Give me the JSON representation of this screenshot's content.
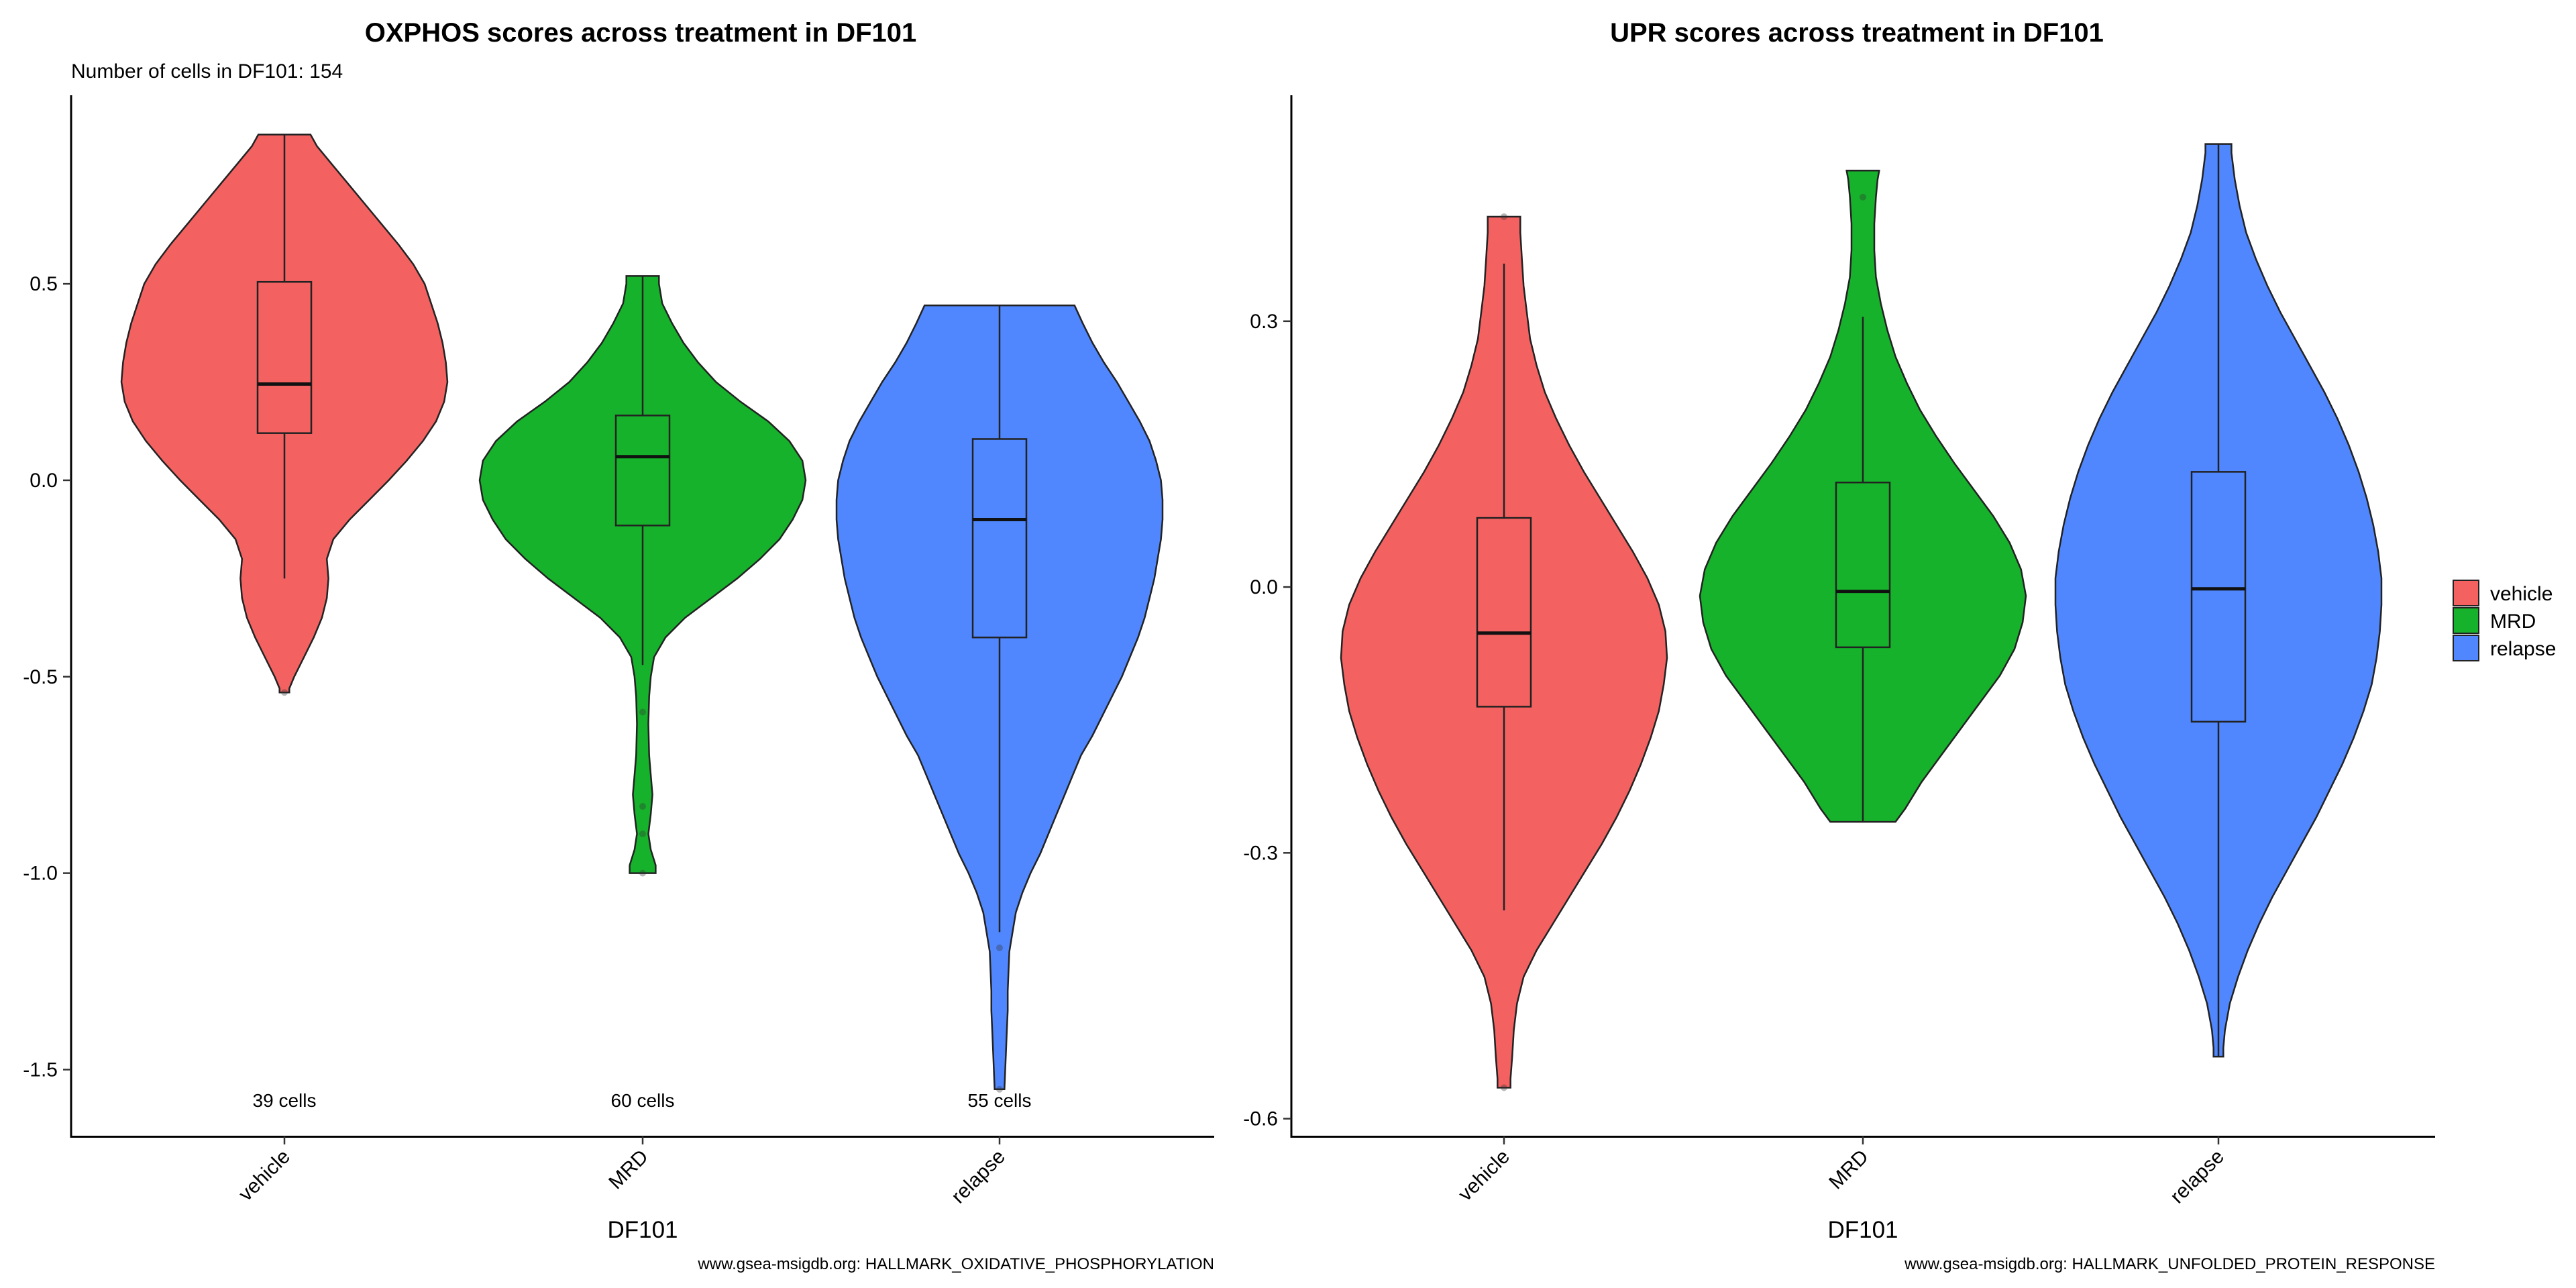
{
  "colors": {
    "vehicle": "#F36161",
    "MRD": "#16B22B",
    "relapse": "#5087FF"
  },
  "legend": {
    "items": [
      "vehicle",
      "MRD",
      "relapse"
    ]
  },
  "chart_data": [
    {
      "type": "violin",
      "title": "OXPHOS scores across treatment in DF101",
      "subtitle": "Number of cells in DF101: 154",
      "xlabel": "DF101",
      "ylabel": "",
      "caption": "www.gsea-msigdb.org: HALLMARK_OXIDATIVE_PHOSPHORYLATION",
      "categories": [
        "vehicle",
        "MRD",
        "relapse"
      ],
      "yticks": [
        0.5,
        0.0,
        -0.5,
        -1.0,
        -1.5
      ],
      "ytick_labels": [
        "0.5",
        "0.0",
        "-0.5",
        "-1.0",
        "-1.5"
      ],
      "ylim": [
        -1.67,
        0.98
      ],
      "groups": [
        {
          "name": "vehicle",
          "count_label": "39 cells",
          "min": -0.54,
          "max": 0.88,
          "density": [
            [
              -0.54,
              0.03
            ],
            [
              -0.53,
              0.03
            ],
            [
              -0.5,
              0.06
            ],
            [
              -0.45,
              0.12
            ],
            [
              -0.4,
              0.18
            ],
            [
              -0.35,
              0.23
            ],
            [
              -0.3,
              0.26
            ],
            [
              -0.25,
              0.27
            ],
            [
              -0.2,
              0.26
            ],
            [
              -0.15,
              0.3
            ],
            [
              -0.1,
              0.4
            ],
            [
              -0.05,
              0.52
            ],
            [
              0.0,
              0.64
            ],
            [
              0.05,
              0.75
            ],
            [
              0.1,
              0.85
            ],
            [
              0.15,
              0.93
            ],
            [
              0.2,
              0.98
            ],
            [
              0.25,
              1.0
            ],
            [
              0.3,
              0.99
            ],
            [
              0.35,
              0.97
            ],
            [
              0.4,
              0.94
            ],
            [
              0.45,
              0.9
            ],
            [
              0.5,
              0.86
            ],
            [
              0.55,
              0.79
            ],
            [
              0.6,
              0.7
            ],
            [
              0.65,
              0.6
            ],
            [
              0.7,
              0.5
            ],
            [
              0.75,
              0.4
            ],
            [
              0.8,
              0.3
            ],
            [
              0.85,
              0.2
            ],
            [
              0.88,
              0.16
            ]
          ],
          "box": {
            "q1": 0.12,
            "median": 0.245,
            "q3": 0.505,
            "whisker_low": -0.25,
            "whisker_high": 0.88
          },
          "outliers": [
            -0.54
          ]
        },
        {
          "name": "MRD",
          "count_label": "60 cells",
          "min": -1.0,
          "max": 0.52,
          "density": [
            [
              -1.0,
              0.08
            ],
            [
              -0.98,
              0.08
            ],
            [
              -0.94,
              0.05
            ],
            [
              -0.9,
              0.035
            ],
            [
              -0.85,
              0.05
            ],
            [
              -0.8,
              0.06
            ],
            [
              -0.75,
              0.05
            ],
            [
              -0.7,
              0.04
            ],
            [
              -0.62,
              0.035
            ],
            [
              -0.55,
              0.04
            ],
            [
              -0.5,
              0.05
            ],
            [
              -0.45,
              0.07
            ],
            [
              -0.4,
              0.14
            ],
            [
              -0.35,
              0.26
            ],
            [
              -0.3,
              0.42
            ],
            [
              -0.25,
              0.58
            ],
            [
              -0.2,
              0.72
            ],
            [
              -0.15,
              0.84
            ],
            [
              -0.1,
              0.92
            ],
            [
              -0.05,
              0.98
            ],
            [
              0.0,
              1.0
            ],
            [
              0.05,
              0.98
            ],
            [
              0.1,
              0.9
            ],
            [
              0.15,
              0.77
            ],
            [
              0.2,
              0.6
            ],
            [
              0.25,
              0.45
            ],
            [
              0.3,
              0.34
            ],
            [
              0.35,
              0.25
            ],
            [
              0.4,
              0.18
            ],
            [
              0.45,
              0.12
            ],
            [
              0.5,
              0.1
            ],
            [
              0.52,
              0.1
            ]
          ],
          "box": {
            "q1": -0.115,
            "median": 0.06,
            "q3": 0.165,
            "whisker_low": -0.47,
            "whisker_high": 0.52
          },
          "outliers": [
            -0.59,
            -0.83,
            -0.9,
            -1.0
          ]
        },
        {
          "name": "relapse",
          "count_label": "55 cells",
          "min": -1.55,
          "max": 0.445,
          "density": [
            [
              -1.55,
              0.03
            ],
            [
              -1.5,
              0.035
            ],
            [
              -1.45,
              0.04
            ],
            [
              -1.4,
              0.045
            ],
            [
              -1.35,
              0.05
            ],
            [
              -1.3,
              0.05
            ],
            [
              -1.25,
              0.055
            ],
            [
              -1.2,
              0.06
            ],
            [
              -1.15,
              0.08
            ],
            [
              -1.1,
              0.1
            ],
            [
              -1.05,
              0.14
            ],
            [
              -1.0,
              0.19
            ],
            [
              -0.95,
              0.25
            ],
            [
              -0.9,
              0.3
            ],
            [
              -0.85,
              0.35
            ],
            [
              -0.8,
              0.4
            ],
            [
              -0.75,
              0.45
            ],
            [
              -0.7,
              0.5
            ],
            [
              -0.65,
              0.57
            ],
            [
              -0.6,
              0.63
            ],
            [
              -0.55,
              0.69
            ],
            [
              -0.5,
              0.75
            ],
            [
              -0.45,
              0.8
            ],
            [
              -0.4,
              0.85
            ],
            [
              -0.35,
              0.89
            ],
            [
              -0.3,
              0.92
            ],
            [
              -0.25,
              0.95
            ],
            [
              -0.2,
              0.97
            ],
            [
              -0.15,
              0.99
            ],
            [
              -0.1,
              1.0
            ],
            [
              -0.05,
              1.0
            ],
            [
              0.0,
              0.99
            ],
            [
              0.05,
              0.96
            ],
            [
              0.1,
              0.92
            ],
            [
              0.15,
              0.86
            ],
            [
              0.2,
              0.79
            ],
            [
              0.25,
              0.72
            ],
            [
              0.3,
              0.64
            ],
            [
              0.35,
              0.57
            ],
            [
              0.4,
              0.51
            ],
            [
              0.445,
              0.46
            ]
          ],
          "box": {
            "q1": -0.4,
            "median": -0.1,
            "q3": 0.105,
            "whisker_low": -1.15,
            "whisker_high": 0.445
          },
          "outliers": [
            -1.19,
            -1.55
          ]
        }
      ]
    },
    {
      "type": "violin",
      "title": "UPR scores across treatment in DF101",
      "subtitle": "",
      "xlabel": "DF101",
      "ylabel": "",
      "caption": "www.gsea-msigdb.org: HALLMARK_UNFOLDED_PROTEIN_RESPONSE",
      "categories": [
        "vehicle",
        "MRD",
        "relapse"
      ],
      "yticks": [
        0.3,
        0.0,
        -0.3,
        -0.6
      ],
      "ytick_labels": [
        "0.3",
        "0.0",
        "-0.3",
        "-0.6"
      ],
      "ylim": [
        -0.62,
        0.555
      ],
      "groups": [
        {
          "name": "vehicle",
          "count_label": "",
          "min": -0.565,
          "max": 0.418,
          "density": [
            [
              -0.565,
              0.04
            ],
            [
              -0.555,
              0.04
            ],
            [
              -0.53,
              0.05
            ],
            [
              -0.5,
              0.06
            ],
            [
              -0.47,
              0.08
            ],
            [
              -0.44,
              0.12
            ],
            [
              -0.41,
              0.2
            ],
            [
              -0.38,
              0.3
            ],
            [
              -0.35,
              0.4
            ],
            [
              -0.32,
              0.5
            ],
            [
              -0.29,
              0.6
            ],
            [
              -0.26,
              0.69
            ],
            [
              -0.23,
              0.77
            ],
            [
              -0.2,
              0.84
            ],
            [
              -0.17,
              0.9
            ],
            [
              -0.14,
              0.95
            ],
            [
              -0.11,
              0.98
            ],
            [
              -0.08,
              1.0
            ],
            [
              -0.05,
              0.99
            ],
            [
              -0.02,
              0.95
            ],
            [
              0.01,
              0.88
            ],
            [
              0.04,
              0.79
            ],
            [
              0.07,
              0.69
            ],
            [
              0.1,
              0.59
            ],
            [
              0.13,
              0.49
            ],
            [
              0.16,
              0.4
            ],
            [
              0.19,
              0.32
            ],
            [
              0.22,
              0.25
            ],
            [
              0.25,
              0.2
            ],
            [
              0.28,
              0.16
            ],
            [
              0.31,
              0.14
            ],
            [
              0.34,
              0.12
            ],
            [
              0.37,
              0.11
            ],
            [
              0.4,
              0.1
            ],
            [
              0.418,
              0.1
            ]
          ],
          "box": {
            "q1": -0.135,
            "median": -0.052,
            "q3": 0.078,
            "whisker_low": -0.365,
            "whisker_high": 0.365
          },
          "outliers": [
            -0.565,
            0.418
          ]
        },
        {
          "name": "MRD",
          "count_label": "",
          "min": -0.265,
          "max": 0.47,
          "density": [
            [
              -0.265,
              0.2
            ],
            [
              -0.25,
              0.26
            ],
            [
              -0.22,
              0.36
            ],
            [
              -0.19,
              0.48
            ],
            [
              -0.16,
              0.6
            ],
            [
              -0.13,
              0.72
            ],
            [
              -0.1,
              0.84
            ],
            [
              -0.07,
              0.93
            ],
            [
              -0.04,
              0.98
            ],
            [
              -0.01,
              1.0
            ],
            [
              0.02,
              0.97
            ],
            [
              0.05,
              0.9
            ],
            [
              0.08,
              0.8
            ],
            [
              0.11,
              0.68
            ],
            [
              0.14,
              0.56
            ],
            [
              0.17,
              0.45
            ],
            [
              0.2,
              0.35
            ],
            [
              0.23,
              0.27
            ],
            [
              0.26,
              0.2
            ],
            [
              0.29,
              0.15
            ],
            [
              0.32,
              0.11
            ],
            [
              0.35,
              0.08
            ],
            [
              0.38,
              0.07
            ],
            [
              0.41,
              0.07
            ],
            [
              0.44,
              0.08
            ],
            [
              0.46,
              0.09
            ],
            [
              0.47,
              0.1
            ]
          ],
          "box": {
            "q1": -0.068,
            "median": -0.005,
            "q3": 0.118,
            "whisker_low": -0.265,
            "whisker_high": 0.305
          },
          "outliers": [
            0.44
          ]
        },
        {
          "name": "relapse",
          "count_label": "",
          "min": -0.53,
          "max": 0.5,
          "density": [
            [
              -0.53,
              0.03
            ],
            [
              -0.52,
              0.03
            ],
            [
              -0.5,
              0.04
            ],
            [
              -0.47,
              0.07
            ],
            [
              -0.44,
              0.12
            ],
            [
              -0.41,
              0.18
            ],
            [
              -0.38,
              0.25
            ],
            [
              -0.35,
              0.33
            ],
            [
              -0.32,
              0.42
            ],
            [
              -0.29,
              0.51
            ],
            [
              -0.26,
              0.6
            ],
            [
              -0.23,
              0.68
            ],
            [
              -0.2,
              0.76
            ],
            [
              -0.17,
              0.83
            ],
            [
              -0.14,
              0.89
            ],
            [
              -0.11,
              0.94
            ],
            [
              -0.08,
              0.97
            ],
            [
              -0.05,
              0.99
            ],
            [
              -0.02,
              1.0
            ],
            [
              0.01,
              1.0
            ],
            [
              0.04,
              0.98
            ],
            [
              0.07,
              0.95
            ],
            [
              0.1,
              0.91
            ],
            [
              0.13,
              0.86
            ],
            [
              0.16,
              0.8
            ],
            [
              0.19,
              0.73
            ],
            [
              0.22,
              0.65
            ],
            [
              0.25,
              0.56
            ],
            [
              0.28,
              0.47
            ],
            [
              0.31,
              0.38
            ],
            [
              0.34,
              0.3
            ],
            [
              0.37,
              0.23
            ],
            [
              0.4,
              0.17
            ],
            [
              0.43,
              0.13
            ],
            [
              0.46,
              0.1
            ],
            [
              0.49,
              0.08
            ],
            [
              0.5,
              0.08
            ]
          ],
          "box": {
            "q1": -0.152,
            "median": -0.002,
            "q3": 0.13,
            "whisker_low": -0.53,
            "whisker_high": 0.5
          },
          "outliers": []
        }
      ]
    }
  ]
}
